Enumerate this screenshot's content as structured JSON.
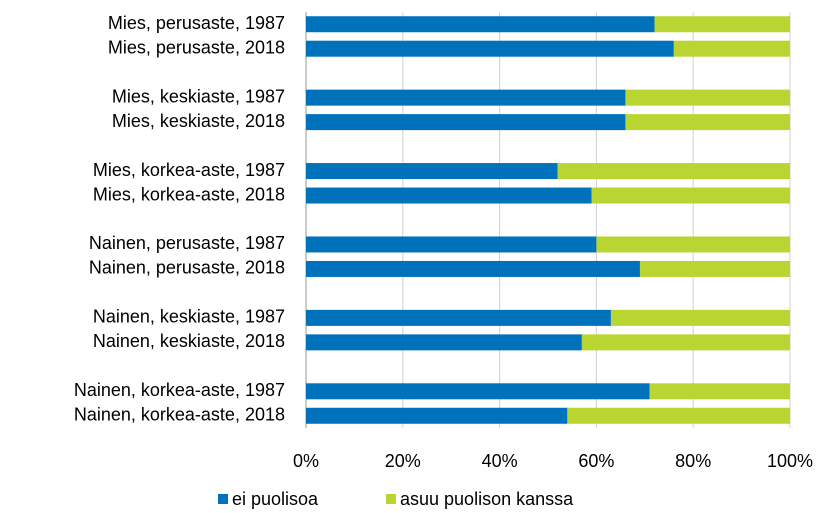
{
  "chart_data": {
    "type": "stacked_barh",
    "categories": [
      "Mies, perusaste, 1987",
      "Mies, perusaste, 2018",
      null,
      "Mies, keskiaste, 1987",
      "Mies, keskiaste, 2018",
      null,
      "Mies, korkea-aste, 1987",
      "Mies, korkea-aste, 2018",
      null,
      "Nainen, perusaste, 1987",
      "Nainen, perusaste, 2018",
      null,
      "Nainen, keskiaste, 1987",
      "Nainen, keskiaste, 2018",
      null,
      "Nainen, korkea-aste, 1987",
      "Nainen, korkea-aste, 2018"
    ],
    "series": [
      {
        "name": "ei puolisoa",
        "color": "#0072bc",
        "values": [
          72,
          76,
          null,
          66,
          66,
          null,
          52,
          59,
          null,
          60,
          69,
          null,
          63,
          57,
          null,
          71,
          54
        ]
      },
      {
        "name": "asuu puolison kanssa",
        "color": "#b9d531",
        "values": [
          28,
          24,
          null,
          34,
          34,
          null,
          48,
          41,
          null,
          40,
          31,
          null,
          37,
          43,
          null,
          29,
          46
        ]
      }
    ],
    "xlim": [
      0,
      100
    ],
    "xticks": [
      {
        "value": 0,
        "label": "0%"
      },
      {
        "value": 20,
        "label": "20%"
      },
      {
        "value": 40,
        "label": "40%"
      },
      {
        "value": 60,
        "label": "60%"
      },
      {
        "value": 80,
        "label": "80%"
      },
      {
        "value": 100,
        "label": "100%"
      }
    ],
    "grid": true,
    "legend": "bottom"
  }
}
